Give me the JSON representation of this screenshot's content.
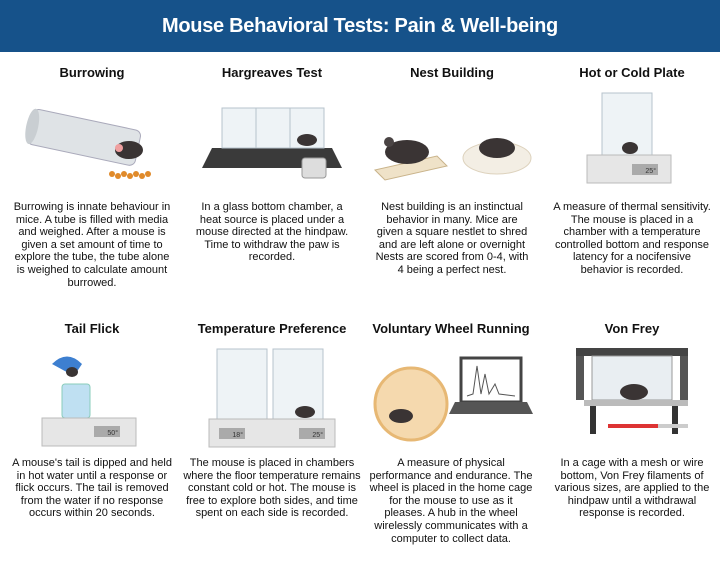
{
  "title": "Mouse Behavioral Tests: Pain & Well-being",
  "tests": [
    {
      "name": "Burrowing",
      "description": "Burrowing is innate behaviour in mice. A tube is filled with media and weighed. After a mouse is given a set amount of time to explore the tube, the tube alone is weighed to calculate amount burrowed."
    },
    {
      "name": "Hargreaves Test",
      "description": "In a glass bottom chamber, a heat source is placed under a mouse directed at the hindpaw. Time to withdraw the paw is recorded."
    },
    {
      "name": "Nest Building",
      "description": "Nest building is an instinctual behavior in many. Mice are given a square nestlet to shred and are left alone or overnight Nests are scored from 0-4, with 4 being a perfect nest."
    },
    {
      "name": "Hot or Cold Plate",
      "description": "A measure of thermal sensitivity. The mouse is placed in a chamber with a temperature controlled bottom and response latency for a nocifensive behavior is recorded.",
      "readout": "25°"
    },
    {
      "name": "Tail Flick",
      "description": "A mouse's tail is dipped and held in hot water until a response or flick occurs. The tail is removed from the water if no response occurs within 20 seconds.",
      "readout": "50°"
    },
    {
      "name": "Temperature Preference",
      "description": "The mouse is placed in chambers where the floor temperature remains constant cold or hot. The mouse is free to explore both sides, and time spent on each side is recorded.",
      "readout_left": "18°",
      "readout_right": "25°"
    },
    {
      "name": "Voluntary Wheel Running",
      "description": "A measure of physical performance and endurance. The wheel is placed in the home cage for the mouse to use as it pleases. A hub in the wheel wirelessly communicates with a computer to collect data."
    },
    {
      "name": "Von Frey",
      "description": "In a cage with a mesh or wire bottom, Von Frey filaments of various sizes, are applied to the hindpaw until a withdrawal response is recorded."
    }
  ],
  "colors": {
    "header": "#16528a",
    "mouse": "#3a3434",
    "plate": "#e6e6e6"
  }
}
